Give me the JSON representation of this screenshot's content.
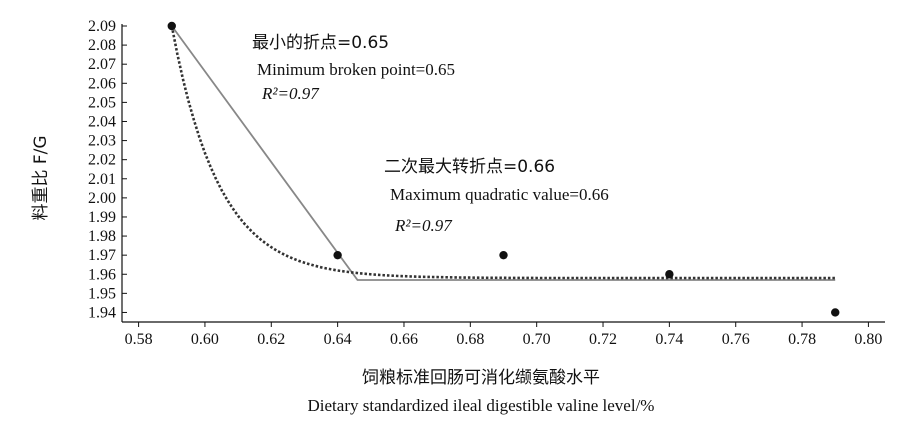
{
  "chart_data": {
    "type": "scatter",
    "title": "",
    "xlabel_cn": "饲粮标准回肠可消化缬氨酸水平",
    "xlabel_en": "Dietary standardized ileal digestible valine level/%",
    "ylabel": "料重比  F/G",
    "xlim": [
      0.575,
      0.805
    ],
    "ylim": [
      1.935,
      2.09
    ],
    "x_ticks": [
      "0.58",
      "0.60",
      "0.62",
      "0.64",
      "0.66",
      "0.68",
      "0.70",
      "0.72",
      "0.74",
      "0.76",
      "0.78",
      "0.80"
    ],
    "y_ticks": [
      "1.94",
      "1.95",
      "1.96",
      "1.97",
      "1.98",
      "1.99",
      "2.00",
      "2.01",
      "2.02",
      "2.03",
      "2.04",
      "2.05",
      "2.06",
      "2.07",
      "2.08",
      "2.09"
    ],
    "points": [
      {
        "x": 0.59,
        "y": 2.09
      },
      {
        "x": 0.64,
        "y": 1.97
      },
      {
        "x": 0.69,
        "y": 1.97
      },
      {
        "x": 0.74,
        "y": 1.96
      },
      {
        "x": 0.79,
        "y": 1.94
      }
    ],
    "broken_line": {
      "style": "solid",
      "color": "#888888",
      "points": [
        [
          0.59,
          2.09
        ],
        [
          0.646,
          1.957
        ],
        [
          0.79,
          1.957
        ]
      ]
    },
    "quadratic_curve": {
      "style": "dotted",
      "color": "#333333",
      "plateau": 1.958,
      "x_start": 0.59,
      "x_end": 0.79
    },
    "annotations": {
      "broken": {
        "cn": "最小的折点=0.65",
        "en": "Minimum broken point=0.65",
        "r2": "R²=0.97"
      },
      "quadratic": {
        "cn": "二次最大转折点=0.66",
        "en": "Maximum quadratic value=0.66",
        "r2": "R²=0.97"
      }
    }
  }
}
